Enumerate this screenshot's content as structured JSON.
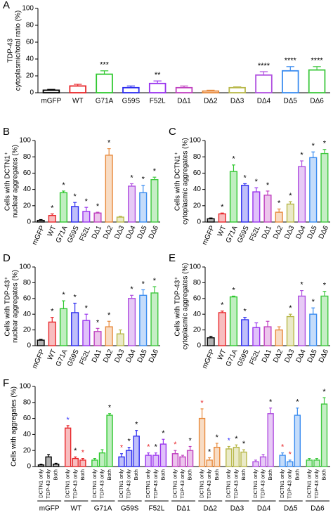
{
  "chart_data": [
    {
      "type": "bar",
      "panel": "A",
      "bar_style": "open",
      "ylabel": [
        "TDP-43",
        "cytoplasmic/total ratio (%)"
      ],
      "categories": [
        "mGFP",
        "WT",
        "G71A",
        "G59S",
        "F52L",
        "DΔ1",
        "DΔ2",
        "DΔ3",
        "DΔ4",
        "DΔ5",
        "DΔ6"
      ],
      "colors": [
        "#000000",
        "#e8262a",
        "#2fc82f",
        "#2b2bef",
        "#9933ee",
        "#c040c0",
        "#e88a3c",
        "#b8b84a",
        "#b050e0",
        "#3a8cf0",
        "#3ec83e"
      ],
      "values": [
        3,
        8,
        22,
        6,
        11,
        6,
        2,
        6,
        21,
        26,
        27
      ],
      "errors": [
        1,
        2,
        4,
        2,
        3,
        2,
        1,
        1,
        4,
        5,
        4
      ],
      "annotations": [
        null,
        null,
        "***",
        null,
        "**",
        null,
        null,
        null,
        "****",
        "****",
        "****"
      ],
      "label_rotation": 0,
      "ylim": [
        0,
        100
      ],
      "yticks": [
        0,
        20,
        40,
        60,
        80,
        100
      ]
    },
    {
      "type": "bar",
      "panel": "B",
      "bar_style": "filled",
      "ylabel": [
        "Cells with DCTN1⁺",
        "nuclear aggregates (%)"
      ],
      "categories": [
        "mGFP",
        "WT",
        "G71A",
        "G59S",
        "F52L",
        "DΔ1",
        "DΔ2",
        "DΔ3",
        "DΔ4",
        "DΔ5",
        "DΔ6"
      ],
      "colors": [
        "#000000",
        "#e8262a",
        "#2fc82f",
        "#2b2bef",
        "#9933ee",
        "#c040c0",
        "#e88a3c",
        "#b8b84a",
        "#b050e0",
        "#3a8cf0",
        "#3ec83e"
      ],
      "values": [
        2,
        8,
        36,
        19,
        13,
        11,
        82,
        6,
        44,
        36,
        52
      ],
      "errors": [
        1,
        2,
        2,
        5,
        5,
        1,
        8,
        1,
        3,
        9,
        3
      ],
      "annotations": [
        null,
        "*",
        "*",
        "*",
        "*",
        "*",
        "*",
        null,
        "*",
        "*",
        "*"
      ],
      "label_rotation": -65,
      "ylim": [
        0,
        100
      ],
      "yticks": [
        0,
        20,
        40,
        60,
        80,
        100
      ]
    },
    {
      "type": "bar",
      "panel": "C",
      "bar_style": "filled",
      "ylabel": [
        "Cells with DCTN1⁺",
        "cytoplasmic aggregates (%)"
      ],
      "categories": [
        "mGFP",
        "WT",
        "G71A",
        "G59S",
        "F52L",
        "DΔ1",
        "DΔ2",
        "DΔ3",
        "DΔ4",
        "DΔ5",
        "DΔ6"
      ],
      "colors": [
        "#000000",
        "#e8262a",
        "#2fc82f",
        "#2b2bef",
        "#9933ee",
        "#c040c0",
        "#e88a3c",
        "#b8b84a",
        "#b050e0",
        "#3a8cf0",
        "#3ec83e"
      ],
      "values": [
        4,
        10,
        62,
        45,
        37,
        33,
        12,
        22,
        68,
        79,
        84
      ],
      "errors": [
        1,
        1,
        8,
        2,
        5,
        5,
        4,
        3,
        7,
        7,
        5
      ],
      "annotations": [
        null,
        "*",
        "*",
        "*",
        "*",
        "*",
        "*",
        "*",
        "*",
        "*",
        "*"
      ],
      "label_rotation": -65,
      "ylim": [
        0,
        100
      ],
      "yticks": [
        0,
        20,
        40,
        60,
        80,
        100
      ]
    },
    {
      "type": "bar",
      "panel": "D",
      "bar_style": "filled",
      "ylabel": [
        "Cells with TDP-43⁺",
        "nuclear aggregates (%)"
      ],
      "categories": [
        "mGFP",
        "WT",
        "G71A",
        "G59S",
        "F52L",
        "DΔ1",
        "DΔ2",
        "DΔ3",
        "DΔ4",
        "DΔ5",
        "DΔ6"
      ],
      "colors": [
        "#000000",
        "#e8262a",
        "#2fc82f",
        "#2b2bef",
        "#9933ee",
        "#c040c0",
        "#e88a3c",
        "#b8b84a",
        "#b050e0",
        "#3a8cf0",
        "#3ec83e"
      ],
      "values": [
        7,
        30,
        47,
        42,
        32,
        18,
        24,
        15,
        60,
        64,
        67
      ],
      "errors": [
        1,
        6,
        10,
        12,
        8,
        4,
        7,
        5,
        4,
        7,
        8
      ],
      "annotations": [
        null,
        "*",
        "*",
        "*",
        "*",
        "*",
        "*",
        null,
        "*",
        "*",
        "*"
      ],
      "label_rotation": -65,
      "ylim": [
        0,
        100
      ],
      "yticks": [
        0,
        20,
        40,
        60,
        80,
        100
      ]
    },
    {
      "type": "bar",
      "panel": "E",
      "bar_style": "filled",
      "ylabel": [
        "Cells with TDP-43⁺",
        "cytoplasmic aggregates (%)"
      ],
      "categories": [
        "mGFP",
        "WT",
        "G71A",
        "G59S",
        "F52L",
        "DΔ1",
        "DΔ2",
        "DΔ3",
        "DΔ4",
        "DΔ5",
        "DΔ6"
      ],
      "colors": [
        "#000000",
        "#e8262a",
        "#2fc82f",
        "#2b2bef",
        "#9933ee",
        "#c040c0",
        "#e88a3c",
        "#b8b84a",
        "#b050e0",
        "#3a8cf0",
        "#3ec83e"
      ],
      "values": [
        10,
        42,
        62,
        33,
        23,
        24,
        20,
        37,
        63,
        40,
        63
      ],
      "errors": [
        2,
        2,
        1,
        3,
        6,
        7,
        4,
        3,
        7,
        8,
        6
      ],
      "annotations": [
        null,
        "*",
        "*",
        "*",
        null,
        null,
        null,
        "*",
        "*",
        "*",
        "*"
      ],
      "label_rotation": -65,
      "ylim": [
        0,
        100
      ],
      "yticks": [
        0,
        20,
        40,
        60,
        80,
        100
      ]
    },
    {
      "type": "grouped_bar",
      "panel": "F",
      "bar_style": "filled",
      "ylabel": [
        "Cells with aggregates (%)"
      ],
      "categories": [
        "mGFP",
        "WT",
        "G71A",
        "G59S",
        "F52L",
        "DΔ1",
        "DΔ2",
        "DΔ3",
        "DΔ4",
        "DΔ5",
        "DΔ6"
      ],
      "subcategories": [
        "DCTN1 only",
        "TDP-43 only",
        "Both"
      ],
      "colors": [
        "#000000",
        "#e8262a",
        "#2fc82f",
        "#2b2bef",
        "#9933ee",
        "#c040c0",
        "#e88a3c",
        "#b8b84a",
        "#b050e0",
        "#3a8cf0",
        "#3ec83e"
      ],
      "values": [
        [
          2,
          12,
          3
        ],
        [
          48,
          10,
          8
        ],
        [
          8,
          17,
          64
        ],
        [
          12,
          20,
          38
        ],
        [
          14,
          14,
          28
        ],
        [
          16,
          12,
          20
        ],
        [
          60,
          8,
          24
        ],
        [
          22,
          24,
          18
        ],
        [
          6,
          12,
          66
        ],
        [
          14,
          6,
          64
        ],
        [
          8,
          8,
          78
        ]
      ],
      "errors": [
        [
          1,
          3,
          1
        ],
        [
          3,
          2,
          2
        ],
        [
          2,
          4,
          2
        ],
        [
          4,
          4,
          7
        ],
        [
          3,
          3,
          6
        ],
        [
          4,
          2,
          5
        ],
        [
          12,
          3,
          5
        ],
        [
          3,
          3,
          3
        ],
        [
          2,
          3,
          7
        ],
        [
          3,
          2,
          9
        ],
        [
          2,
          2,
          8
        ]
      ],
      "annotations": [
        [
          null,
          null,
          null
        ],
        [
          {
            "text": "*",
            "color": "#3333ff"
          },
          {
            "text": "*",
            "color": "#000000"
          },
          {
            "text": "*",
            "color": "#e8262a"
          }
        ],
        [
          null,
          null,
          {
            "text": "*",
            "color": "#000000"
          }
        ],
        [
          {
            "text": "*",
            "color": "#e8262a"
          },
          {
            "text": "*",
            "color": "#000000"
          },
          {
            "text": "*",
            "color": "#000000"
          }
        ],
        [
          {
            "text": "*",
            "color": "#e8262a"
          },
          {
            "text": "*",
            "color": "#000000"
          },
          {
            "text": "*",
            "color": "#000000"
          }
        ],
        [
          {
            "text": "*",
            "color": "#e8262a"
          },
          null,
          {
            "text": "*",
            "color": "#000000"
          }
        ],
        [
          {
            "text": "*",
            "color": "#e8262a"
          },
          {
            "text": "*",
            "color": "#000000"
          },
          {
            "text": "*",
            "color": "#000000"
          }
        ],
        [
          {
            "text": "*",
            "color": "#3333ff"
          },
          {
            "text": "*",
            "color": "#000000"
          },
          {
            "text": "*",
            "color": "#000000"
          }
        ],
        [
          null,
          null,
          {
            "text": "*",
            "color": "#000000"
          }
        ],
        [
          {
            "text": "*",
            "color": "#e8262a"
          },
          {
            "text": "*",
            "color": "#e8262a"
          },
          {
            "text": "*",
            "color": "#000000"
          }
        ],
        [
          null,
          null,
          {
            "text": "*",
            "color": "#000000"
          }
        ]
      ],
      "label_rotation": -90,
      "ylim": [
        0,
        100
      ],
      "yticks": [
        0,
        20,
        40,
        60,
        80,
        100
      ]
    }
  ]
}
